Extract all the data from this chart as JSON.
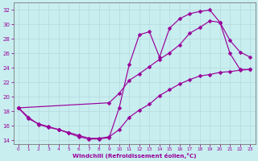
{
  "xlabel": "Windchill (Refroidissement éolien,°C)",
  "xlim": [
    -0.5,
    23.5
  ],
  "ylim": [
    13.5,
    33
  ],
  "yticks": [
    14,
    16,
    18,
    20,
    22,
    24,
    26,
    28,
    30,
    32
  ],
  "xticks": [
    0,
    1,
    2,
    3,
    4,
    5,
    6,
    7,
    8,
    9,
    10,
    11,
    12,
    13,
    14,
    15,
    16,
    17,
    18,
    19,
    20,
    21,
    22,
    23
  ],
  "bg_color": "#c8eef0",
  "line_color": "#990099",
  "grid_color": "#b8dde0",
  "series1_x": [
    0,
    1,
    2,
    3,
    4,
    5,
    6,
    7,
    8,
    9,
    10,
    11,
    12,
    13,
    14,
    15,
    16,
    17,
    18,
    19,
    20,
    21,
    22,
    23
  ],
  "series1_y": [
    18.5,
    17.0,
    16.3,
    15.9,
    15.5,
    15.0,
    14.5,
    14.2,
    14.2,
    14.4,
    18.5,
    24.5,
    28.6,
    29.0,
    25.5,
    29.5,
    30.8,
    31.5,
    31.8,
    32.0,
    30.3,
    26.0,
    23.8,
    23.8
  ],
  "series2_x": [
    0,
    1,
    2,
    3,
    4,
    5,
    6,
    7,
    8,
    9,
    10,
    11,
    12,
    13,
    14,
    15,
    16,
    17,
    18,
    19,
    20,
    21,
    22,
    23
  ],
  "series2_y": [
    18.5,
    17.2,
    16.2,
    15.8,
    15.5,
    15.1,
    14.7,
    14.3,
    14.3,
    14.5,
    15.5,
    17.2,
    18.2,
    19.0,
    20.2,
    21.0,
    21.8,
    22.4,
    22.9,
    23.1,
    23.4,
    23.5,
    23.7,
    23.8
  ],
  "series3_x": [
    0,
    9,
    10,
    11,
    12,
    13,
    14,
    15,
    16,
    17,
    18,
    19,
    20,
    21,
    22,
    23
  ],
  "series3_y": [
    18.5,
    19.2,
    20.5,
    22.3,
    23.2,
    24.2,
    25.2,
    26.1,
    27.2,
    28.8,
    29.6,
    30.5,
    30.3,
    27.8,
    26.2,
    25.5
  ]
}
